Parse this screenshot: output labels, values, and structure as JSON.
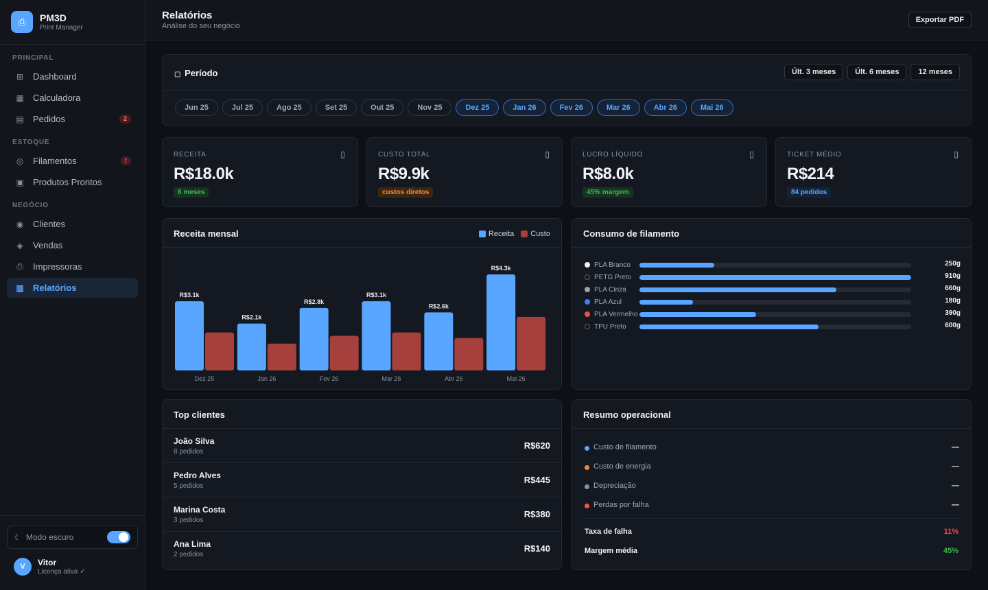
{
  "brand": {
    "name": "PM3D",
    "subtitle": "Print Manager",
    "logo_icon": "printer-icon"
  },
  "sidebar": {
    "sections": [
      {
        "title": "PRINCIPAL",
        "items": [
          {
            "label": "Dashboard",
            "icon": "grid-icon",
            "active": false
          },
          {
            "label": "Calculadora",
            "icon": "calculator-icon",
            "active": false
          },
          {
            "label": "Pedidos",
            "icon": "clipboard-icon",
            "active": false,
            "badge": "2"
          }
        ]
      },
      {
        "title": "ESTOQUE",
        "items": [
          {
            "label": "Filamentos",
            "icon": "spool-icon",
            "active": false,
            "badge": "!"
          },
          {
            "label": "Produtos Prontos",
            "icon": "box-icon",
            "active": false
          }
        ]
      },
      {
        "title": "NEGÓCIO",
        "items": [
          {
            "label": "Clientes",
            "icon": "users-icon",
            "active": false
          },
          {
            "label": "Vendas",
            "icon": "cart-icon",
            "active": false
          },
          {
            "label": "Impressoras",
            "icon": "printer-icon",
            "active": false
          },
          {
            "label": "Relatórios",
            "icon": "chart-icon",
            "active": true
          }
        ]
      }
    ],
    "dark_mode": {
      "label": "Modo escuro",
      "enabled": true
    },
    "user": {
      "initial": "V",
      "name": "Vitor",
      "status": "Licença ativa ✓"
    }
  },
  "header": {
    "title": "Relatórios",
    "subtitle": "Análise do seu negócio",
    "export_label": "Exportar PDF"
  },
  "period": {
    "title": "Período",
    "ranges": [
      "Últ. 3 meses",
      "Últ. 6 meses",
      "12 meses"
    ],
    "months": [
      {
        "label": "Jun 25",
        "selected": false
      },
      {
        "label": "Jul 25",
        "selected": false
      },
      {
        "label": "Ago 25",
        "selected": false
      },
      {
        "label": "Set 25",
        "selected": false
      },
      {
        "label": "Out 25",
        "selected": false
      },
      {
        "label": "Nov 25",
        "selected": false
      },
      {
        "label": "Dez 25",
        "selected": true
      },
      {
        "label": "Jan 26",
        "selected": true
      },
      {
        "label": "Fev 26",
        "selected": true
      },
      {
        "label": "Mar 26",
        "selected": true
      },
      {
        "label": "Abr 26",
        "selected": true
      },
      {
        "label": "Mai 26",
        "selected": true
      }
    ]
  },
  "kpis": [
    {
      "label": "RECEITA",
      "value": "R$18.0k",
      "badge": "6 meses",
      "badge_bg": "#173322",
      "badge_color": "#3fb950",
      "icon": "money-icon"
    },
    {
      "label": "CUSTO TOTAL",
      "value": "R$9.9k",
      "badge": "custos diretos",
      "badge_bg": "#3b2612",
      "badge_color": "#f0883e",
      "icon": "receipt-icon"
    },
    {
      "label": "LUCRO LÍQUIDO",
      "value": "R$8.0k",
      "badge": "45% margem",
      "badge_bg": "#173322",
      "badge_color": "#3fb950",
      "icon": "trending-up-icon"
    },
    {
      "label": "TICKET MÉDIO",
      "value": "R$214",
      "badge": "84 pedidos",
      "badge_bg": "#152338",
      "badge_color": "#58a6ff",
      "icon": "ticket-icon"
    }
  ],
  "revenue_chart": {
    "title": "Receita mensal",
    "legend": [
      {
        "label": "Receita",
        "color": "#58a6ff"
      },
      {
        "label": "Custo",
        "color": "#a5403d"
      }
    ]
  },
  "chart_data": {
    "type": "bar",
    "categories": [
      "Dez 25",
      "Jan 26",
      "Fev 26",
      "Mar 26",
      "Abr 26",
      "Mai 26"
    ],
    "series": [
      {
        "name": "Receita",
        "values": [
          3.1,
          2.1,
          2.8,
          3.1,
          2.6,
          4.3
        ],
        "color": "#58a6ff"
      },
      {
        "name": "Custo",
        "values": [
          1.7,
          1.2,
          1.55,
          1.7,
          1.45,
          2.4
        ],
        "color": "#a5403d"
      }
    ],
    "data_labels": [
      "R$3.1k",
      "R$2.1k",
      "R$2.8k",
      "R$3.1k",
      "R$2.6k",
      "R$4.3k"
    ],
    "ylim": [
      0,
      4.3
    ],
    "xlabel": "",
    "ylabel": "",
    "grid": false,
    "legend_position": "top-right"
  },
  "filament": {
    "title": "Consumo de filamento",
    "max": 910,
    "items": [
      {
        "name": "PLA Branco",
        "dot": "#f0f2f5",
        "grams": 250,
        "value_label": "250g",
        "outline": false
      },
      {
        "name": "PETG Preto",
        "dot": "#12151c",
        "grams": 910,
        "value_label": "910g",
        "outline": true
      },
      {
        "name": "PLA Cinza",
        "dot": "#9ea3a8",
        "grams": 660,
        "value_label": "660g",
        "outline": false
      },
      {
        "name": "PLA Azul",
        "dot": "#3b82f6",
        "grams": 180,
        "value_label": "180g",
        "outline": false
      },
      {
        "name": "PLA Vermelho",
        "dot": "#e5534b",
        "grams": 390,
        "value_label": "390g",
        "outline": false
      },
      {
        "name": "TPU Preto",
        "dot": "#12151c",
        "grams": 600,
        "value_label": "600g",
        "outline": true
      }
    ]
  },
  "top_clients": {
    "title": "Top clientes",
    "rows": [
      {
        "name": "João Silva",
        "orders": "8 pedidos",
        "value": "R$620"
      },
      {
        "name": "Pedro Alves",
        "orders": "5 pedidos",
        "value": "R$445"
      },
      {
        "name": "Marina Costa",
        "orders": "3 pedidos",
        "value": "R$380"
      },
      {
        "name": "Ana Lima",
        "orders": "2 pedidos",
        "value": "R$140"
      }
    ]
  },
  "ops": {
    "title": "Resumo operacional",
    "items": [
      {
        "label": "Custo de filamento",
        "dot": "#58a6ff",
        "value": "—"
      },
      {
        "label": "Custo de energia",
        "dot": "#f0883e",
        "value": "—"
      },
      {
        "label": "Depreciação",
        "dot": "#8b929c",
        "value": "—"
      },
      {
        "label": "Perdas por falha",
        "dot": "#f85149",
        "value": "—"
      }
    ],
    "failure_rate": {
      "label": "Taxa de falha",
      "value": "11%",
      "color": "#f85149"
    },
    "avg_margin": {
      "label": "Margem média",
      "value": "45%",
      "color": "#3fb950"
    }
  }
}
